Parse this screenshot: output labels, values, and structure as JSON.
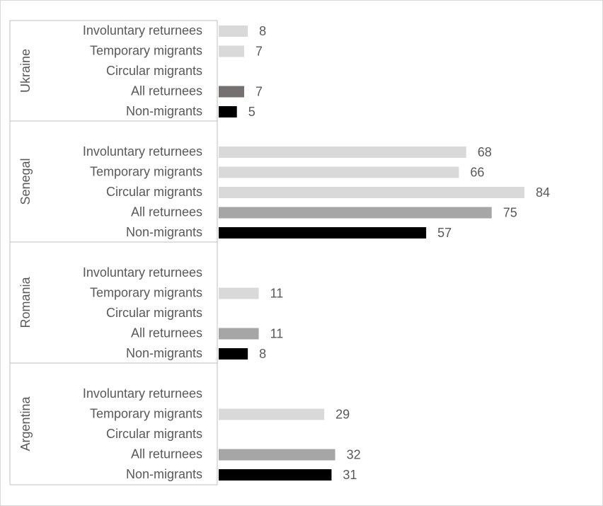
{
  "chart_data": {
    "type": "bar",
    "groups": [
      {
        "name": "Ukraine",
        "categories": [
          "Involuntary returnees",
          "Temporary migrants",
          "Circular migrants",
          "All returnees",
          "Non-migrants"
        ],
        "values": [
          8,
          7,
          null,
          7,
          5
        ],
        "colors": [
          "#d9d9d9",
          "#d9d9d9",
          "#d9d9d9",
          "#767171",
          "#000000"
        ]
      },
      {
        "name": "Senegal",
        "categories": [
          "Involuntary returnees",
          "Temporary migrants",
          "Circular migrants",
          "All returnees",
          "Non-migrants"
        ],
        "values": [
          68,
          66,
          84,
          75,
          57
        ],
        "colors": [
          "#d9d9d9",
          "#d9d9d9",
          "#d9d9d9",
          "#a6a6a6",
          "#000000"
        ]
      },
      {
        "name": "Romania",
        "categories": [
          "Involuntary returnees",
          "Temporary migrants",
          "Circular migrants",
          "All returnees",
          "Non-migrants"
        ],
        "values": [
          null,
          11,
          null,
          11,
          8
        ],
        "colors": [
          "#d9d9d9",
          "#d9d9d9",
          "#d9d9d9",
          "#a6a6a6",
          "#000000"
        ]
      },
      {
        "name": "Argentina",
        "categories": [
          "Involuntary returnees",
          "Temporary migrants",
          "Circular migrants",
          "All returnees",
          "Non-migrants"
        ],
        "values": [
          null,
          29,
          null,
          32,
          31
        ],
        "colors": [
          "#d9d9d9",
          "#d9d9d9",
          "#d9d9d9",
          "#a6a6a6",
          "#000000"
        ]
      }
    ]
  }
}
